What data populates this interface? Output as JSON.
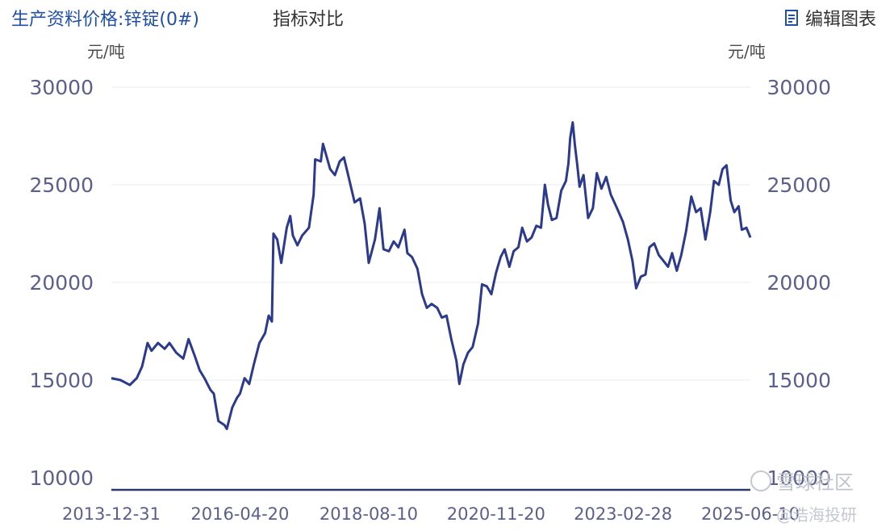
{
  "header": {
    "main_tab": "生产资料价格:锌锭(0#)",
    "compare_tab": "指标对比",
    "edit_label": "编辑图表",
    "edit_icon": "edit-chart-icon"
  },
  "watermark": {
    "text1": "雪球社区",
    "text2": "@浩海投研"
  },
  "chart_data": {
    "type": "line",
    "unit_left": "元/吨",
    "unit_right": "元/吨",
    "ylim": [
      10000,
      30000
    ],
    "y_ticks": [
      "30000",
      "25000",
      "20000",
      "15000",
      "10000"
    ],
    "y_tick_values": [
      30000,
      25000,
      20000,
      15000,
      10000
    ],
    "x_range": [
      "2013-12-31",
      "2025-06-10"
    ],
    "x_ticks": [
      "2013-12-31",
      "2016-04-20",
      "2018-08-10",
      "2020-11-20",
      "2023-02-28",
      "2025-06-10"
    ],
    "grid": true,
    "line_color": "#2b3a8c",
    "series": [
      {
        "points": [
          [
            "2013-12-31",
            15100
          ],
          [
            "2014-03-01",
            15000
          ],
          [
            "2014-05-01",
            14750
          ],
          [
            "2014-06-15",
            15100
          ],
          [
            "2014-07-20",
            15700
          ],
          [
            "2014-08-25",
            16900
          ],
          [
            "2014-09-20",
            16500
          ],
          [
            "2014-11-01",
            16900
          ],
          [
            "2014-12-15",
            16600
          ],
          [
            "2015-01-15",
            16900
          ],
          [
            "2015-03-01",
            16400
          ],
          [
            "2015-04-15",
            16100
          ],
          [
            "2015-05-20",
            17100
          ],
          [
            "2015-07-01",
            16200
          ],
          [
            "2015-08-01",
            15500
          ],
          [
            "2015-09-01",
            15100
          ],
          [
            "2015-10-10",
            14500
          ],
          [
            "2015-11-01",
            14300
          ],
          [
            "2015-12-01",
            12900
          ],
          [
            "2016-01-10",
            12700
          ],
          [
            "2016-01-25",
            12500
          ],
          [
            "2016-03-01",
            13600
          ],
          [
            "2016-04-01",
            14100
          ],
          [
            "2016-04-20",
            14300
          ],
          [
            "2016-05-20",
            15100
          ],
          [
            "2016-06-20",
            14800
          ],
          [
            "2016-07-20",
            15800
          ],
          [
            "2016-08-25",
            16900
          ],
          [
            "2016-10-01",
            17400
          ],
          [
            "2016-10-25",
            18300
          ],
          [
            "2016-11-15",
            18000
          ],
          [
            "2016-11-25",
            22500
          ],
          [
            "2016-12-20",
            22200
          ],
          [
            "2017-01-15",
            21000
          ],
          [
            "2017-02-20",
            22800
          ],
          [
            "2017-03-15",
            23400
          ],
          [
            "2017-04-01",
            22400
          ],
          [
            "2017-05-01",
            21900
          ],
          [
            "2017-06-01",
            22400
          ],
          [
            "2017-07-15",
            22800
          ],
          [
            "2017-08-15",
            24500
          ],
          [
            "2017-08-25",
            26300
          ],
          [
            "2017-10-01",
            26200
          ],
          [
            "2017-10-15",
            27100
          ],
          [
            "2017-12-01",
            25800
          ],
          [
            "2018-01-01",
            25500
          ],
          [
            "2018-02-01",
            26200
          ],
          [
            "2018-03-01",
            26400
          ],
          [
            "2018-04-10",
            25100
          ],
          [
            "2018-05-10",
            24100
          ],
          [
            "2018-06-15",
            24300
          ],
          [
            "2018-07-15",
            23000
          ],
          [
            "2018-08-10",
            21000
          ],
          [
            "2018-09-20",
            22200
          ],
          [
            "2018-10-20",
            23800
          ],
          [
            "2018-11-15",
            21700
          ],
          [
            "2018-12-20",
            21600
          ],
          [
            "2019-01-20",
            22100
          ],
          [
            "2019-02-20",
            21800
          ],
          [
            "2019-04-01",
            22700
          ],
          [
            "2019-04-20",
            21500
          ],
          [
            "2019-05-20",
            21300
          ],
          [
            "2019-06-25",
            20700
          ],
          [
            "2019-07-25",
            19400
          ],
          [
            "2019-08-25",
            18700
          ],
          [
            "2019-09-25",
            18900
          ],
          [
            "2019-11-01",
            18700
          ],
          [
            "2019-12-01",
            18200
          ],
          [
            "2020-01-01",
            18300
          ],
          [
            "2020-02-01",
            17100
          ],
          [
            "2020-03-05",
            16000
          ],
          [
            "2020-03-25",
            14800
          ],
          [
            "2020-04-20",
            15800
          ],
          [
            "2020-05-20",
            16400
          ],
          [
            "2020-06-20",
            16700
          ],
          [
            "2020-07-25",
            17900
          ],
          [
            "2020-08-20",
            19900
          ],
          [
            "2020-09-20",
            19800
          ],
          [
            "2020-10-20",
            19400
          ],
          [
            "2020-11-20",
            20500
          ],
          [
            "2020-12-20",
            21300
          ],
          [
            "2021-01-15",
            21700
          ],
          [
            "2021-02-15",
            20800
          ],
          [
            "2021-03-15",
            21600
          ],
          [
            "2021-04-15",
            21800
          ],
          [
            "2021-05-10",
            22800
          ],
          [
            "2021-06-10",
            22100
          ],
          [
            "2021-07-10",
            22300
          ],
          [
            "2021-08-10",
            22900
          ],
          [
            "2021-09-10",
            22800
          ],
          [
            "2021-10-05",
            25000
          ],
          [
            "2021-10-25",
            24000
          ],
          [
            "2021-11-20",
            23200
          ],
          [
            "2021-12-20",
            23300
          ],
          [
            "2022-01-20",
            24700
          ],
          [
            "2022-02-20",
            25200
          ],
          [
            "2022-03-08",
            26100
          ],
          [
            "2022-03-20",
            27400
          ],
          [
            "2022-04-05",
            28200
          ],
          [
            "2022-04-20",
            27000
          ],
          [
            "2022-05-05",
            26000
          ],
          [
            "2022-05-20",
            24900
          ],
          [
            "2022-06-15",
            25500
          ],
          [
            "2022-07-15",
            23300
          ],
          [
            "2022-08-15",
            23800
          ],
          [
            "2022-09-10",
            25600
          ],
          [
            "2022-10-10",
            24800
          ],
          [
            "2022-11-10",
            25400
          ],
          [
            "2022-12-10",
            24500
          ],
          [
            "2023-01-20",
            23800
          ],
          [
            "2023-02-28",
            23100
          ],
          [
            "2023-04-01",
            22200
          ],
          [
            "2023-05-01",
            21100
          ],
          [
            "2023-05-25",
            19700
          ],
          [
            "2023-06-25",
            20300
          ],
          [
            "2023-07-25",
            20400
          ],
          [
            "2023-08-20",
            21800
          ],
          [
            "2023-09-20",
            22000
          ],
          [
            "2023-10-20",
            21400
          ],
          [
            "2023-11-20",
            21100
          ],
          [
            "2023-12-20",
            20800
          ],
          [
            "2024-01-15",
            21500
          ],
          [
            "2024-02-15",
            20600
          ],
          [
            "2024-03-15",
            21400
          ],
          [
            "2024-04-15",
            22600
          ],
          [
            "2024-05-20",
            24400
          ],
          [
            "2024-06-20",
            23600
          ],
          [
            "2024-07-20",
            23800
          ],
          [
            "2024-08-20",
            22200
          ],
          [
            "2024-09-20",
            23600
          ],
          [
            "2024-10-15",
            25200
          ],
          [
            "2024-11-15",
            25000
          ],
          [
            "2024-12-10",
            25800
          ],
          [
            "2025-01-05",
            26000
          ],
          [
            "2025-02-01",
            24200
          ],
          [
            "2025-02-25",
            23600
          ],
          [
            "2025-03-25",
            23900
          ],
          [
            "2025-04-15",
            22700
          ],
          [
            "2025-05-15",
            22800
          ],
          [
            "2025-06-10",
            22300
          ]
        ]
      }
    ]
  }
}
